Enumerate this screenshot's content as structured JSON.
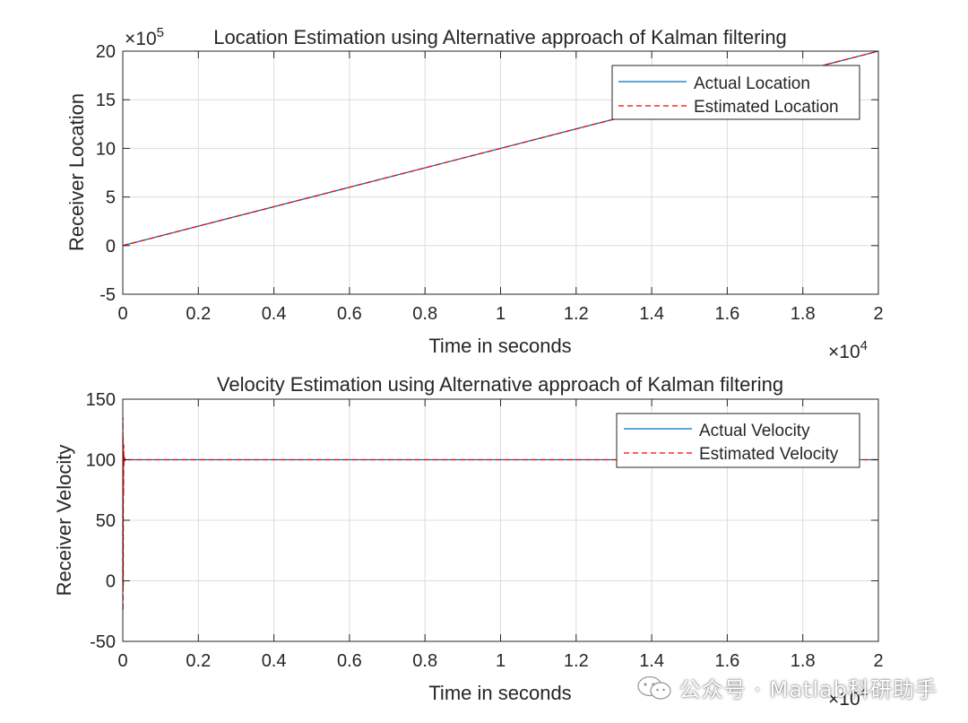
{
  "chart_data": [
    {
      "type": "line",
      "title": "Location Estimation using Alternative approach of Kalman filtering",
      "xlabel": "Time in seconds",
      "ylabel": "Receiver Location",
      "x_multiplier": "×10",
      "x_exponent": "4",
      "y_multiplier": "×10",
      "y_exponent": "5",
      "xlim": [
        0,
        2
      ],
      "ylim": [
        -5,
        20
      ],
      "xticks": [
        "0",
        "0.2",
        "0.4",
        "0.6",
        "0.8",
        "1",
        "1.2",
        "1.4",
        "1.6",
        "1.8",
        "2"
      ],
      "yticks": [
        "-5",
        "0",
        "5",
        "10",
        "15",
        "20"
      ],
      "grid": true,
      "legend_position": "top-right",
      "series": [
        {
          "name": "Actual Location",
          "color": "#0072BD",
          "style": "solid",
          "x": [
            0,
            2
          ],
          "y": [
            0,
            20
          ]
        },
        {
          "name": "Estimated Location",
          "color": "#FF0000",
          "style": "dashed",
          "x": [
            0,
            2
          ],
          "y": [
            0,
            20
          ]
        }
      ]
    },
    {
      "type": "line",
      "title": "Velocity Estimation using Alternative approach of Kalman filtering",
      "xlabel": "Time in seconds",
      "ylabel": "Receiver Velocity",
      "x_multiplier": "×10",
      "x_exponent": "4",
      "xlim": [
        0,
        2
      ],
      "ylim": [
        -50,
        150
      ],
      "xticks": [
        "0",
        "0.2",
        "0.4",
        "0.6",
        "0.8",
        "1",
        "1.2",
        "1.4",
        "1.6",
        "1.8",
        "2"
      ],
      "yticks": [
        "-50",
        "0",
        "50",
        "100",
        "150"
      ],
      "grid": true,
      "legend_position": "top-right",
      "series": [
        {
          "name": "Actual Velocity",
          "color": "#0072BD",
          "style": "solid",
          "x": [
            0,
            2
          ],
          "y": [
            100,
            100
          ]
        },
        {
          "name": "Estimated Velocity",
          "color": "#FF0000",
          "style": "dashed",
          "x": [
            0,
            0.0003,
            0.0006,
            0.0009,
            0.0012,
            0.0015,
            0.002,
            0.0025,
            0.003,
            0.0035,
            0.004,
            0.005,
            0.006,
            0.007,
            0.008,
            0.01,
            0.012,
            0.02,
            2
          ],
          "y": [
            0,
            135,
            -25,
            118,
            -5,
            110,
            70,
            112,
            95,
            104,
            98,
            101.5,
            99.3,
            100.6,
            99.7,
            100.2,
            100,
            100,
            100
          ]
        }
      ]
    }
  ],
  "watermark": {
    "text": "公众号 · Matlab科研助手"
  }
}
